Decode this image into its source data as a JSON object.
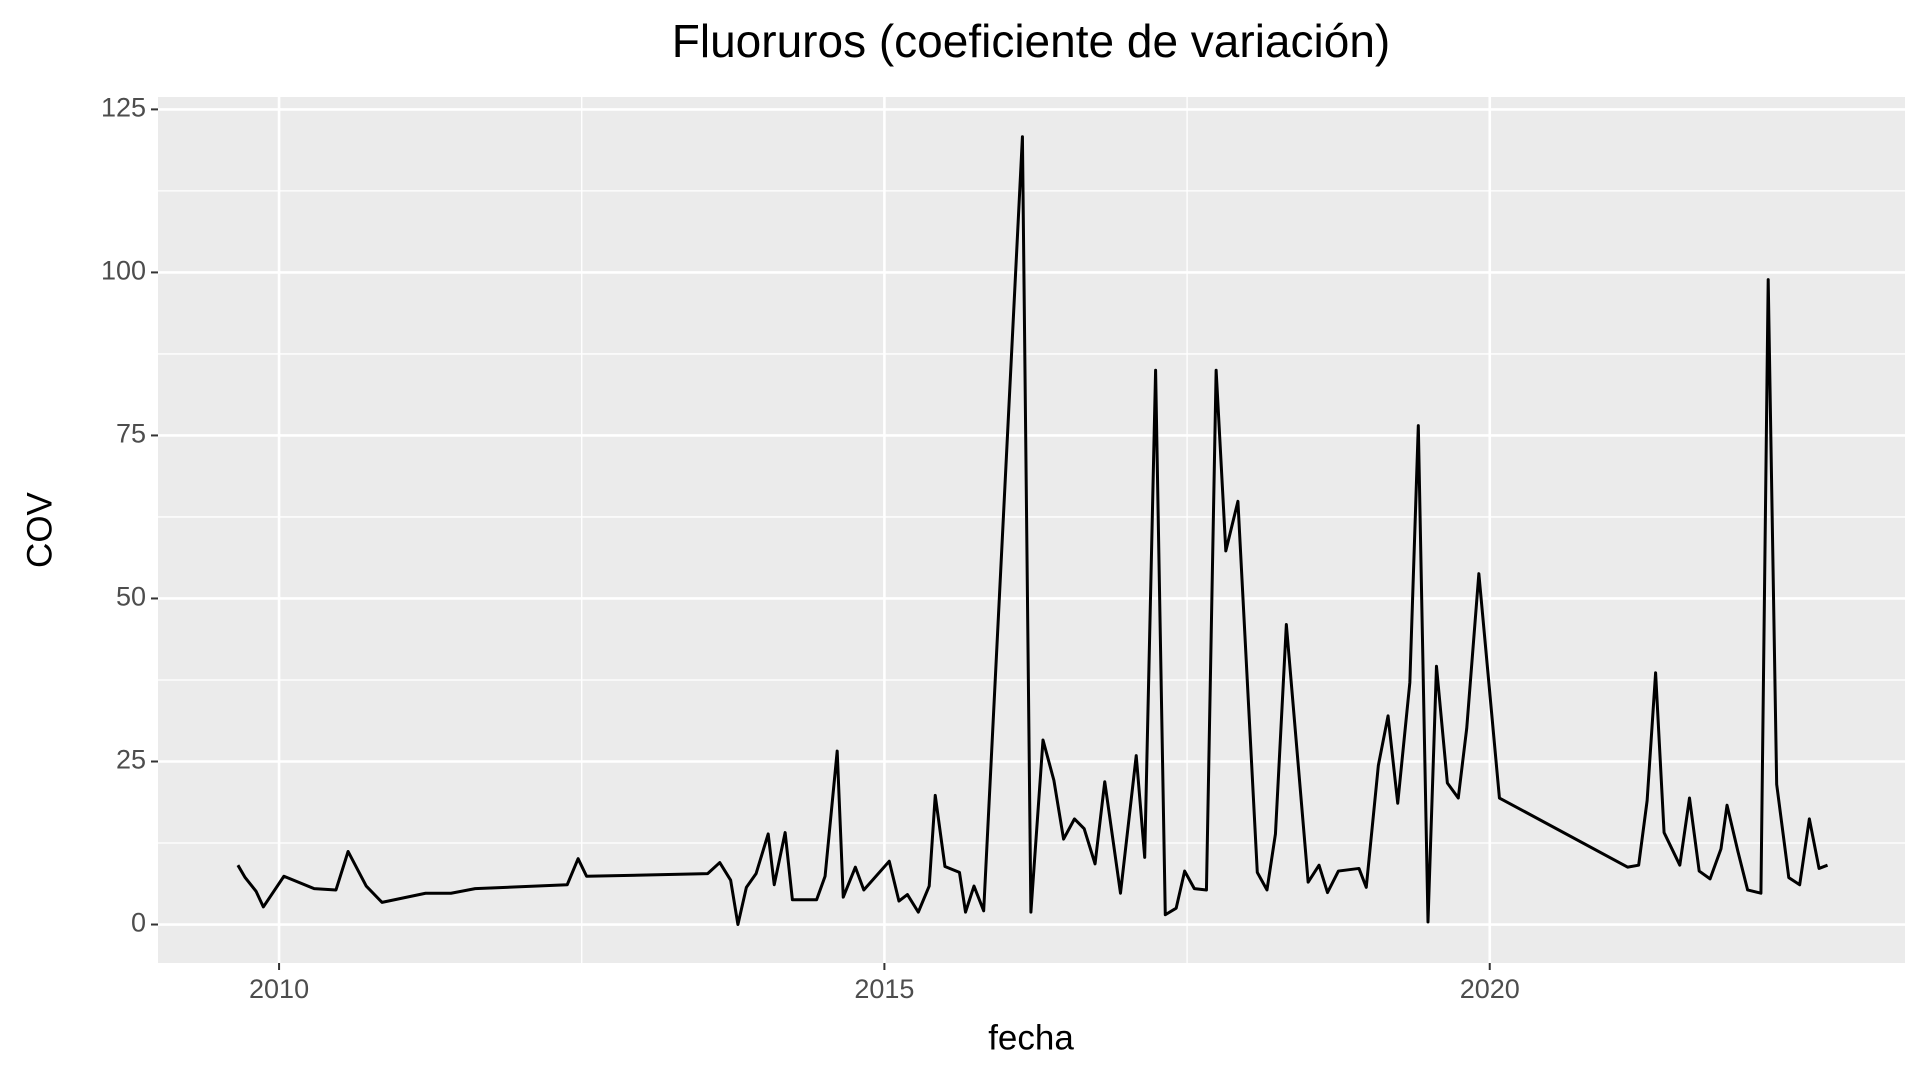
{
  "chart_data": {
    "type": "line",
    "title": "Fluoruros (coeficiente de variación)",
    "x_label": "fecha",
    "y_label": "COV",
    "x": [
      2009.66,
      2009.72,
      2009.81,
      2009.87,
      2010.04,
      2010.29,
      2010.47,
      2010.57,
      2010.72,
      2010.85,
      2011.21,
      2011.42,
      2011.62,
      2012.38,
      2012.47,
      2012.54,
      2013.54,
      2013.64,
      2013.73,
      2013.79,
      2013.86,
      2013.94,
      2014.04,
      2014.09,
      2014.18,
      2014.24,
      2014.44,
      2014.51,
      2014.61,
      2014.66,
      2014.76,
      2014.83,
      2015.04,
      2015.12,
      2015.19,
      2015.28,
      2015.37,
      2015.42,
      2015.5,
      2015.62,
      2015.67,
      2015.74,
      2015.82,
      2016.14,
      2016.21,
      2016.31,
      2016.4,
      2016.48,
      2016.57,
      2016.65,
      2016.74,
      2016.82,
      2016.95,
      2017.08,
      2017.15,
      2017.24,
      2017.32,
      2017.41,
      2017.48,
      2017.56,
      2017.66,
      2017.74,
      2017.82,
      2017.92,
      2018.08,
      2018.16,
      2018.23,
      2018.32,
      2018.5,
      2018.59,
      2018.66,
      2018.75,
      2018.92,
      2018.98,
      2019.08,
      2019.16,
      2019.24,
      2019.34,
      2019.41,
      2019.49,
      2019.56,
      2019.65,
      2019.74,
      2019.81,
      2019.91,
      2020.08,
      2021.14,
      2021.23,
      2021.3,
      2021.37,
      2021.44,
      2021.57,
      2021.65,
      2021.73,
      2021.82,
      2021.91,
      2021.96,
      2022.05,
      2022.13,
      2022.24,
      2022.3,
      2022.37,
      2022.47,
      2022.56,
      2022.64,
      2022.72,
      2022.79
    ],
    "series": [
      {
        "name": "COV",
        "color": "#000000",
        "values": [
          9.1,
          7.2,
          5.1,
          2.7,
          7.4,
          5.5,
          5.3,
          11.2,
          5.9,
          3.4,
          4.8,
          4.8,
          5.5,
          6.1,
          10.1,
          7.4,
          7.8,
          9.5,
          6.8,
          0,
          5.7,
          7.8,
          13.9,
          6.1,
          14.1,
          3.8,
          3.8,
          7.4,
          26.6,
          4.2,
          8.8,
          5.3,
          9.7,
          3.6,
          4.6,
          1.9,
          5.9,
          19.8,
          8.9,
          8.0,
          1.9,
          5.9,
          2.1,
          120.8,
          1.9,
          28.3,
          22.1,
          13.1,
          16.2,
          14.7,
          9.3,
          21.9,
          4.8,
          25.9,
          10.3,
          85.0,
          1.5,
          2.5,
          8.2,
          5.5,
          5.3,
          85.0,
          57.3,
          64.9,
          8.0,
          5.3,
          13.9,
          46.0,
          6.5,
          9.1,
          4.9,
          8.2,
          8.6,
          5.7,
          24.4,
          32.0,
          18.6,
          37.1,
          76.5,
          0.4,
          39.6,
          21.7,
          19.4,
          30.1,
          53.8,
          19.4,
          8.8,
          9.1,
          19.0,
          38.6,
          14.1,
          9.1,
          19.4,
          8.2,
          7.0,
          11.6,
          18.3,
          11.2,
          5.3,
          4.8,
          98.9,
          21.5,
          7.2,
          6.1,
          16.2,
          8.6,
          9.1
        ]
      }
    ],
    "xlim": [
      2009.0,
      2023.43
    ],
    "ylim": [
      -5.9,
      126.9
    ],
    "xticks": [
      2010,
      2015,
      2020
    ],
    "yticks": [
      0,
      25,
      50,
      75,
      100,
      125
    ],
    "grid": true,
    "panel_color": "#ebebeb"
  }
}
